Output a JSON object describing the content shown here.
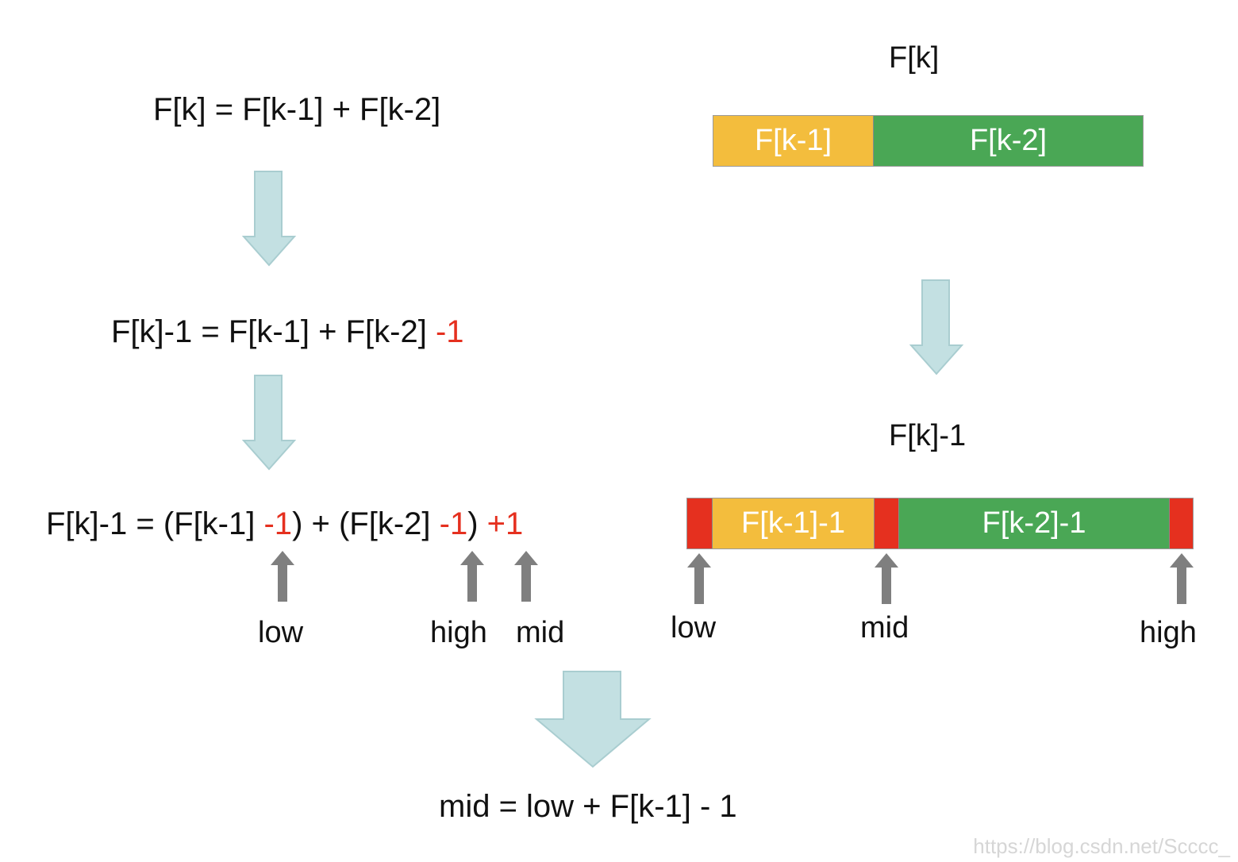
{
  "left": {
    "eq1": "F[k] = F[k-1] + F[k-2]",
    "eq2": {
      "main": "F[k]-1 = F[k-1] + F[k-2] ",
      "red": "-1"
    },
    "eq3": {
      "p1": "F[k]-1 = (F[k-1] ",
      "r1": "-1",
      "p2": ") + (F[k-2] ",
      "r2": "-1",
      "p3": ") ",
      "r3": "+1"
    },
    "pointer_labels": {
      "low": "low",
      "high": "high",
      "mid": "mid"
    }
  },
  "right": {
    "bar1_title": "F[k]",
    "bar1_segments": [
      "F[k-1]",
      "F[k-2]"
    ],
    "bar2_title": "F[k]-1",
    "bar2_segments": [
      "F[k-1]-1",
      "F[k-2]-1"
    ],
    "pointer_labels": {
      "low": "low",
      "mid": "mid",
      "high": "high"
    }
  },
  "result": "mid = low + F[k-1] - 1",
  "watermark": "https://blog.csdn.net/Scccc_",
  "colors": {
    "yellow": "#f3bd3d",
    "green": "#4aa755",
    "red": "#e5301f",
    "flow_arrow": "#c3e0e2",
    "pointer_arrow": "#7f7f7f"
  }
}
